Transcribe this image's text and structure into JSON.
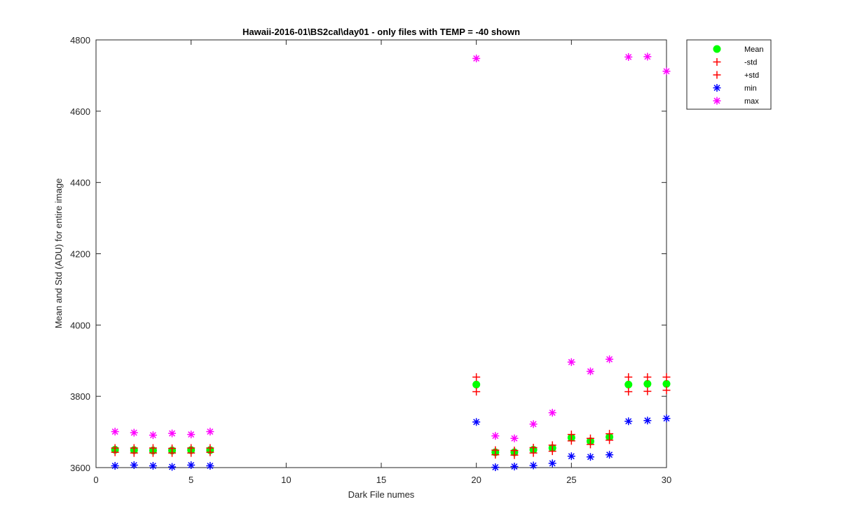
{
  "chart_data": {
    "type": "scatter",
    "title": "Hawaii-2016-01\\BS2cal\\day01 - only files with TEMP = -40 shown",
    "xlabel": "Dark File numes",
    "ylabel": "Mean and Std (ADU) for entire image",
    "xlim": [
      0,
      30
    ],
    "ylim": [
      3600,
      4800
    ],
    "xticks": [
      0,
      5,
      10,
      15,
      20,
      25,
      30
    ],
    "yticks": [
      3600,
      3800,
      4000,
      4200,
      4400,
      4600,
      4800
    ],
    "x": [
      1,
      2,
      3,
      4,
      5,
      6,
      20,
      21,
      22,
      23,
      24,
      25,
      26,
      27,
      28,
      29,
      30
    ],
    "series": [
      {
        "name": "Mean",
        "marker": "dot",
        "color": "#00ff00",
        "values": [
          3650,
          3649,
          3648,
          3648,
          3649,
          3649,
          3833,
          3643,
          3643,
          3650,
          3655,
          3684,
          3674,
          3686,
          3833,
          3835,
          3835
        ]
      },
      {
        "name": "-std",
        "marker": "plus",
        "color": "#ff0000",
        "values": [
          3643,
          3641,
          3641,
          3641,
          3641,
          3643,
          3813,
          3636,
          3635,
          3641,
          3646,
          3675,
          3665,
          3677,
          3813,
          3814,
          3817
        ]
      },
      {
        "name": "+std",
        "marker": "plus",
        "color": "#ff0000",
        "values": [
          3655,
          3655,
          3655,
          3654,
          3655,
          3655,
          3854,
          3649,
          3648,
          3656,
          3663,
          3693,
          3682,
          3695,
          3854,
          3854,
          3854
        ]
      },
      {
        "name": "min",
        "marker": "star",
        "color": "#0000ff",
        "values": [
          3605,
          3607,
          3605,
          3602,
          3607,
          3605,
          3728,
          3601,
          3603,
          3606,
          3612,
          3632,
          3630,
          3636,
          3730,
          3732,
          3738
        ]
      },
      {
        "name": "max",
        "marker": "star",
        "color": "#ff00ff",
        "values": [
          3701,
          3698,
          3691,
          3696,
          3693,
          3701,
          4748,
          3689,
          3682,
          3722,
          3754,
          3896,
          3870,
          3904,
          4752,
          4753,
          4712
        ]
      }
    ],
    "legend_position": "outside-top-right",
    "grid": false
  }
}
